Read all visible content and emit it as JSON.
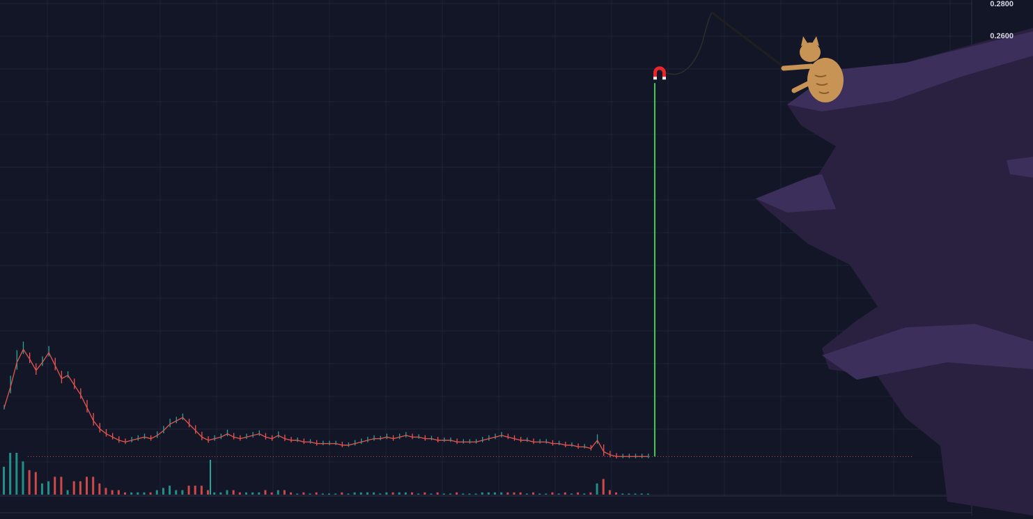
{
  "colors": {
    "background": "#121626",
    "grid": "#1e2336",
    "up": "#26a69a",
    "down": "#ef5350",
    "pump_line": "#33cc55",
    "price_line": "#d9534f",
    "cliff": "#2a2140",
    "cliff_light": "#3c2f5c",
    "magnet_red": "#e8262b",
    "cat": "#c89456"
  },
  "chart_data": {
    "type": "candlestick",
    "title": "",
    "xlabel": "",
    "ylabel": "",
    "y_tick_labels": [
      "0.2800",
      "0.2600"
    ],
    "y_ticks": [
      0.28,
      0.26
    ],
    "ylim": [
      0.0,
      0.281
    ],
    "grid": true,
    "series": [
      {
        "values": [
          0.032,
          0.045,
          0.06,
          0.068,
          0.062,
          0.055,
          0.06,
          0.066,
          0.058,
          0.05,
          0.052,
          0.046,
          0.04,
          0.032,
          0.024,
          0.019,
          0.016,
          0.014,
          0.012,
          0.011,
          0.012,
          0.013,
          0.014,
          0.013,
          0.015,
          0.018,
          0.022,
          0.024,
          0.026,
          0.022,
          0.018,
          0.014,
          0.012,
          0.013,
          0.014,
          0.016,
          0.014,
          0.013,
          0.014,
          0.015,
          0.016,
          0.014,
          0.013,
          0.015,
          0.013,
          0.012,
          0.012,
          0.011,
          0.011,
          0.01,
          0.01,
          0.01,
          0.01,
          0.009,
          0.009,
          0.01,
          0.011,
          0.012,
          0.013,
          0.013,
          0.014,
          0.013,
          0.014,
          0.015,
          0.014,
          0.014,
          0.013,
          0.013,
          0.012,
          0.012,
          0.012,
          0.011,
          0.011,
          0.011,
          0.011,
          0.012,
          0.013,
          0.014,
          0.015,
          0.014,
          0.013,
          0.012,
          0.012,
          0.011,
          0.011,
          0.011,
          0.01,
          0.01,
          0.009,
          0.009,
          0.008,
          0.008,
          0.007,
          0.012,
          0.005,
          0.003,
          0.002,
          0.002,
          0.002,
          0.002,
          0.002,
          0.002,
          0.232
        ]
      }
    ],
    "reference_line_value": 0.002,
    "annotations": [
      "fishing-cat-with-magnet"
    ]
  }
}
